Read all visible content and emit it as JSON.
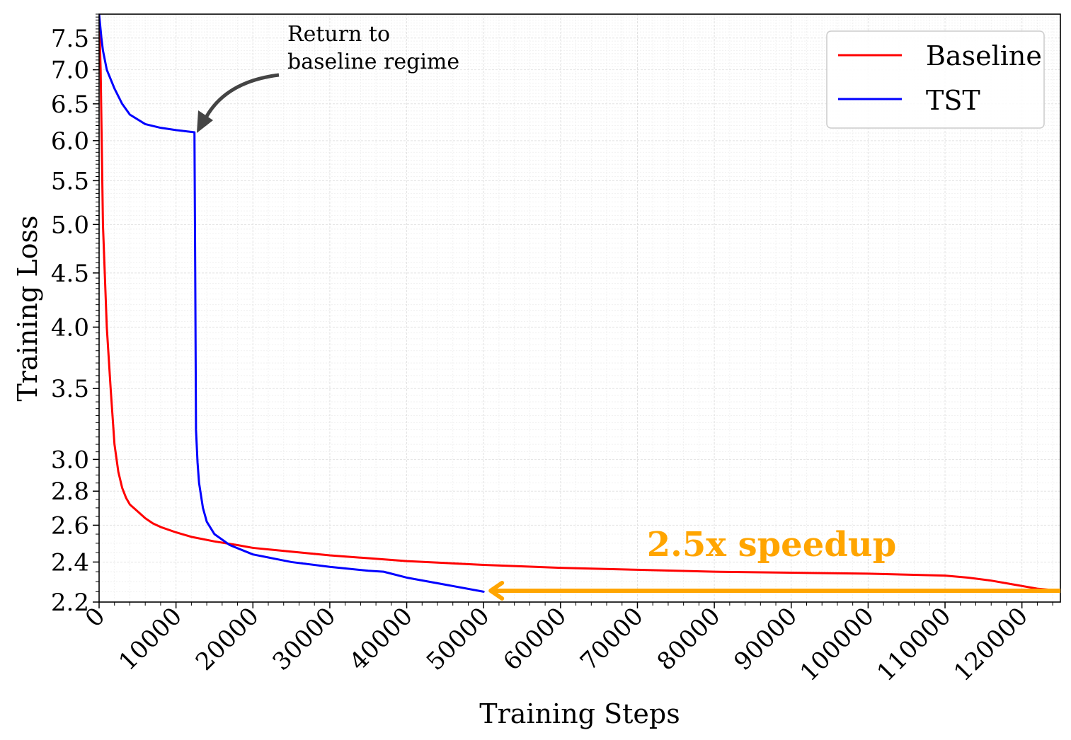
{
  "chart_data": {
    "type": "line",
    "xlabel": "Training Steps",
    "ylabel": "Training Loss",
    "xlim": [
      0,
      125000
    ],
    "ylim": [
      2.2,
      7.9
    ],
    "yscale": "log",
    "grid": true,
    "legend_placement": "top-right",
    "x_ticks": [
      "0",
      "10000",
      "20000",
      "30000",
      "40000",
      "50000",
      "60000",
      "70000",
      "80000",
      "90000",
      "100000",
      "110000",
      "120000"
    ],
    "y_ticks": [
      "2.2",
      "2.4",
      "2.6",
      "2.8",
      "3.0",
      "3.5",
      "4.0",
      "4.5",
      "5.0",
      "5.5",
      "6.0",
      "6.5",
      "7.0",
      "7.5"
    ],
    "series": [
      {
        "name": "Baseline",
        "color": "#ff0000",
        "x": [
          0,
          200,
          500,
          1000,
          1500,
          2000,
          2500,
          3000,
          3500,
          4000,
          5000,
          6000,
          7000,
          8000,
          10000,
          12000,
          15000,
          18000,
          20000,
          25000,
          30000,
          35000,
          40000,
          45000,
          50000,
          60000,
          70000,
          80000,
          90000,
          100000,
          105000,
          110000,
          113000,
          116000,
          119000,
          122000,
          125000
        ],
        "y": [
          7.9,
          7.0,
          5.0,
          4.0,
          3.5,
          3.1,
          2.92,
          2.82,
          2.76,
          2.72,
          2.68,
          2.64,
          2.61,
          2.59,
          2.56,
          2.535,
          2.51,
          2.49,
          2.475,
          2.455,
          2.435,
          2.42,
          2.405,
          2.395,
          2.385,
          2.37,
          2.36,
          2.35,
          2.345,
          2.34,
          2.335,
          2.33,
          2.32,
          2.305,
          2.285,
          2.265,
          2.255
        ]
      },
      {
        "name": "TST",
        "color": "#0000ff",
        "x": [
          0,
          300,
          500,
          1000,
          2000,
          3000,
          4000,
          6000,
          8000,
          10000,
          12400,
          12500,
          12600,
          12800,
          13000,
          13500,
          14000,
          15000,
          17000,
          20000,
          25000,
          30000,
          35000,
          37000,
          40000,
          45000,
          50000
        ],
        "y": [
          7.9,
          7.5,
          7.3,
          7.0,
          6.72,
          6.5,
          6.35,
          6.22,
          6.17,
          6.14,
          6.11,
          4.5,
          3.2,
          2.98,
          2.85,
          2.7,
          2.62,
          2.55,
          2.49,
          2.44,
          2.4,
          2.375,
          2.355,
          2.35,
          2.32,
          2.285,
          2.25
        ]
      }
    ],
    "annotations": [
      {
        "text_line1": "Return to",
        "text_line2": "baseline regime",
        "x": 12400,
        "y": 6.11
      },
      {
        "text": "2.5x speedup",
        "color": "#ffa500",
        "arrow_from": [
          125000,
          2.255
        ],
        "arrow_to": [
          50000,
          2.255
        ]
      }
    ]
  }
}
